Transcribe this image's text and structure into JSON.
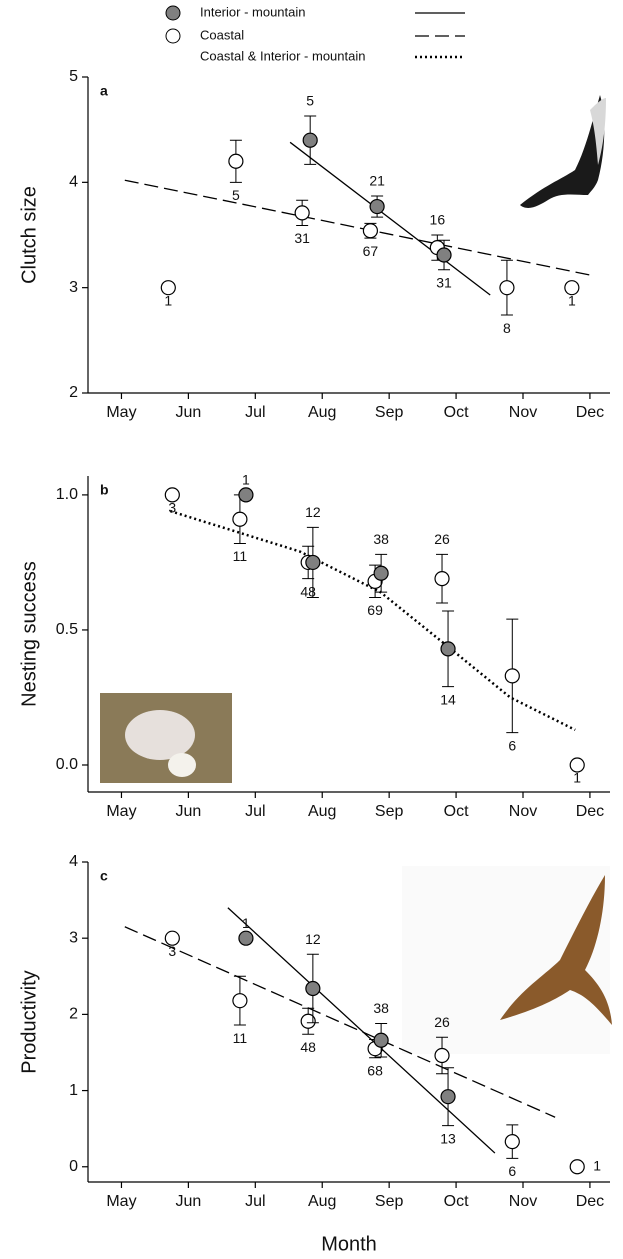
{
  "chart_data": [
    {
      "type": "scatter",
      "panel_label": "a",
      "y_label": "Clutch size",
      "xlim": [
        4.5,
        12.3
      ],
      "ylim": [
        2,
        5
      ],
      "yticks": [
        2,
        3,
        4,
        5
      ],
      "xticks": [
        {
          "value": 5,
          "label": "May"
        },
        {
          "value": 6,
          "label": "Jun"
        },
        {
          "value": 7,
          "label": "Jul"
        },
        {
          "value": 8,
          "label": "Aug"
        },
        {
          "value": 9,
          "label": "Sep"
        },
        {
          "value": 10,
          "label": "Oct"
        },
        {
          "value": 11,
          "label": "Nov"
        },
        {
          "value": 12,
          "label": "Dec"
        }
      ],
      "series": [
        {
          "name": "Interior - mountain",
          "color": "#808080",
          "x": [
            7.82,
            8.82,
            9.82
          ],
          "values": [
            4.4,
            3.77,
            3.31
          ],
          "errors": [
            0.23,
            0.1,
            0.14
          ],
          "n": [
            5,
            21,
            31
          ],
          "fit": {
            "dash": "solid",
            "x": [
              7.52,
              10.51
            ],
            "values": [
              4.38,
              2.93
            ]
          }
        },
        {
          "name": "Coastal",
          "color": "#ffffff",
          "x": [
            5.7,
            6.71,
            7.7,
            8.72,
            9.72,
            10.76,
            11.73
          ],
          "values": [
            3.0,
            4.2,
            3.71,
            3.54,
            3.38,
            3.0,
            3.0
          ],
          "errors": [
            null,
            0.2,
            0.12,
            0.07,
            0.12,
            0.26,
            null
          ],
          "n": [
            1,
            5,
            31,
            67,
            16,
            8,
            1
          ],
          "fit": {
            "dash": "dashed",
            "x": [
              5.05,
              12.0
            ],
            "values": [
              4.02,
              3.12
            ]
          }
        }
      ]
    },
    {
      "type": "scatter",
      "panel_label": "b",
      "y_label": "Nesting success",
      "xlim": [
        4.5,
        12.3
      ],
      "ylim": [
        -0.1,
        1.07
      ],
      "yticks": [
        {
          "value": 0,
          "label": "0.0"
        },
        {
          "value": 0.5,
          "label": "0.5"
        },
        {
          "value": 1,
          "label": "1.0"
        }
      ],
      "xticks": [
        {
          "value": 5,
          "label": "May"
        },
        {
          "value": 6,
          "label": "Jun"
        },
        {
          "value": 7,
          "label": "Jul"
        },
        {
          "value": 8,
          "label": "Aug"
        },
        {
          "value": 9,
          "label": "Sep"
        },
        {
          "value": 10,
          "label": "Oct"
        },
        {
          "value": 11,
          "label": "Nov"
        },
        {
          "value": 12,
          "label": "Dec"
        }
      ],
      "series": [
        {
          "name": "Interior - mountain",
          "color": "#808080",
          "x": [
            6.86,
            7.86,
            8.88,
            9.88
          ],
          "values": [
            1.0,
            0.75,
            0.71,
            0.43
          ],
          "errors": [
            null,
            0.13,
            0.07,
            0.14
          ],
          "n": [
            1,
            12,
            38,
            14
          ]
        },
        {
          "name": "Coastal",
          "color": "#ffffff",
          "x": [
            5.76,
            6.77,
            7.79,
            8.79,
            9.79,
            10.84,
            11.81
          ],
          "values": [
            1.0,
            0.91,
            0.75,
            0.68,
            0.69,
            0.33,
            0.0
          ],
          "errors": [
            null,
            0.09,
            0.06,
            0.06,
            0.09,
            0.21,
            null
          ],
          "n": [
            3,
            11,
            48,
            69,
            26,
            6,
            1
          ]
        }
      ],
      "fit": {
        "name": "Coastal & Interior - mountain",
        "dash": "dotted",
        "x": [
          5.73,
          7.67,
          8.87,
          9.92,
          10.81,
          11.78
        ],
        "values": [
          0.94,
          0.79,
          0.64,
          0.43,
          0.25,
          0.13
        ]
      }
    },
    {
      "type": "scatter",
      "panel_label": "c",
      "y_label": "Productivity",
      "x_label": "Month",
      "xlim": [
        4.5,
        12.3
      ],
      "ylim": [
        -0.2,
        4
      ],
      "yticks": [
        0,
        1,
        2,
        3,
        4
      ],
      "xticks": [
        {
          "value": 5,
          "label": "May"
        },
        {
          "value": 6,
          "label": "Jun"
        },
        {
          "value": 7,
          "label": "Jul"
        },
        {
          "value": 8,
          "label": "Aug"
        },
        {
          "value": 9,
          "label": "Sep"
        },
        {
          "value": 10,
          "label": "Oct"
        },
        {
          "value": 11,
          "label": "Nov"
        },
        {
          "value": 12,
          "label": "Dec"
        }
      ],
      "series": [
        {
          "name": "Interior - mountain",
          "color": "#808080",
          "x": [
            6.86,
            7.86,
            8.88,
            9.88
          ],
          "values": [
            3.0,
            2.34,
            1.66,
            0.92
          ],
          "errors": [
            null,
            0.45,
            0.22,
            0.38
          ],
          "n": [
            1,
            12,
            38,
            13
          ],
          "fit": {
            "dash": "solid",
            "x": [
              6.59,
              10.58
            ],
            "values": [
              3.4,
              0.18
            ]
          }
        },
        {
          "name": "Coastal",
          "color": "#ffffff",
          "x": [
            5.76,
            6.77,
            7.79,
            8.79,
            9.79,
            10.84,
            11.81
          ],
          "values": [
            3.0,
            2.18,
            1.91,
            1.55,
            1.46,
            0.33,
            0.0
          ],
          "errors": [
            null,
            0.32,
            0.17,
            0.12,
            0.24,
            0.22,
            null
          ],
          "n": [
            3,
            11,
            48,
            68,
            26,
            6,
            1
          ],
          "fit": {
            "dash": "dashed",
            "x": [
              5.05,
              11.48
            ],
            "values": [
              3.15,
              0.65
            ]
          }
        }
      ]
    }
  ]
}
